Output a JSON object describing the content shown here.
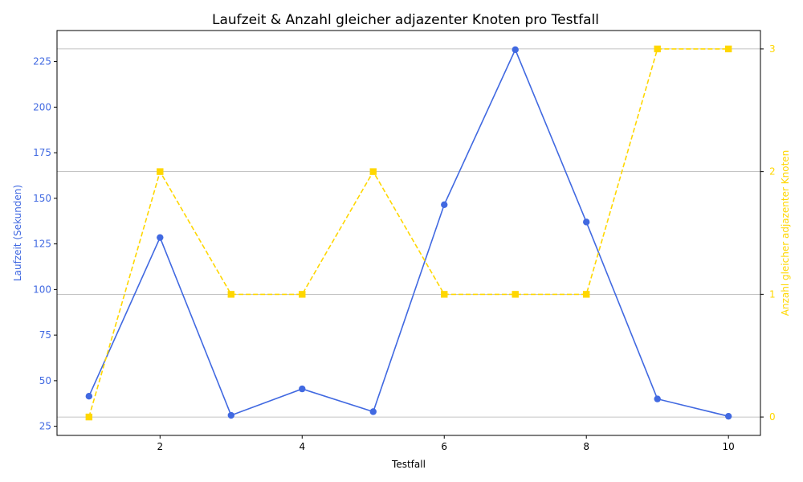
{
  "chart_data": {
    "type": "line",
    "title": "Laufzeit & Anzahl gleicher adjazenter Knoten pro Testfall",
    "xlabel": "Testfall",
    "ylabel_left": "Laufzeit (Sekunden)",
    "ylabel_right": "Anzahl gleicher adjazenter Knoten",
    "x": [
      1,
      2,
      3,
      4,
      5,
      6,
      7,
      8,
      9,
      10
    ],
    "xlim": [
      0.55,
      10.45
    ],
    "xticks": [
      2,
      4,
      6,
      8,
      10
    ],
    "ylim_left": [
      20,
      242
    ],
    "yticks_left": [
      25,
      50,
      75,
      100,
      125,
      150,
      175,
      200,
      225
    ],
    "ylim_right": [
      -0.15,
      3.15
    ],
    "yticks_right": [
      0,
      1,
      2,
      3
    ],
    "grid": "horizontal gridlines at right-axis ticks",
    "series": [
      {
        "axis": "left",
        "values": [
          41.5,
          128.5,
          31,
          45.5,
          33,
          146.5,
          231.5,
          137,
          40,
          30.5
        ],
        "color": "#4169e1",
        "marker": "circle",
        "linestyle": "solid"
      },
      {
        "axis": "right",
        "values": [
          0,
          2,
          1,
          1,
          2,
          1,
          1,
          1,
          3,
          3
        ],
        "color": "#ffd700",
        "marker": "square",
        "linestyle": "dashed"
      }
    ]
  }
}
